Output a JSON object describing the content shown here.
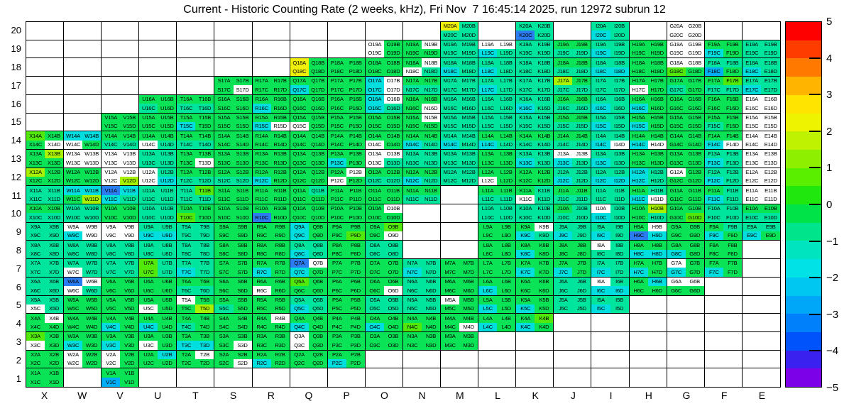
{
  "title": "Current - Historic Counting Rate (2 weeks, kHz), Fri Nov  7 16:45:14 2025, run 12972 subrun 12",
  "chart_data": {
    "type": "heatmap",
    "title": "Current - Historic Counting Rate (2 weeks, kHz), Fri Nov  7 16:45:14 2025, run 12972 subrun 12",
    "xlabel": "",
    "ylabel": "",
    "x_categories": [
      "X",
      "W",
      "V",
      "U",
      "T",
      "S",
      "R",
      "Q",
      "P",
      "O",
      "N",
      "M",
      "L",
      "K",
      "J",
      "I",
      "H",
      "G",
      "F",
      "E"
    ],
    "y_categories": [
      "20",
      "19",
      "18",
      "17",
      "16",
      "15",
      "14",
      "13",
      "12",
      "11",
      "10",
      "9",
      "8",
      "7",
      "6",
      "5",
      "4",
      "3",
      "2",
      "1"
    ],
    "quadrant_labels": [
      "A",
      "B",
      "C",
      "D"
    ],
    "grid_on": true,
    "colorbar": {
      "min": -5,
      "max": 5,
      "tick_labels": [
        "5",
        "4",
        "3",
        "2",
        "1",
        "0",
        "−1",
        "−2",
        "−3",
        "−4",
        "−5"
      ],
      "band_colors_top_to_bottom": [
        "#ff0000",
        "#ff3c00",
        "#ff7800",
        "#ffb400",
        "#ffe400",
        "#eef400",
        "#bef200",
        "#8ef000",
        "#5aee00",
        "#20e80e",
        "#00e348",
        "#00e58c",
        "#00e5c0",
        "#00e2e6",
        "#00c6f2",
        "#00a6f8",
        "#0080fa",
        "#0053fb",
        "#3b21f0",
        "#7c00e8"
      ]
    },
    "palette": {
      "w": {
        "hex": "#ffffff",
        "approx_value": null
      },
      "g": {
        "hex": "#0be356",
        "approx_value": 0.3
      },
      "t": {
        "hex": "#00e59e",
        "approx_value": -0.7
      },
      "c": {
        "hex": "#00dee0",
        "approx_value": -1.7
      },
      "s": {
        "hex": "#00aef8",
        "approx_value": -2.3
      },
      "b": {
        "hex": "#2b7cf0",
        "approx_value": -2.9
      },
      "l": {
        "hex": "#52e90a",
        "approx_value": 1.2
      },
      "y": {
        "hex": "#a8f200",
        "approx_value": 1.8
      },
      "Y": {
        "hex": "#efef0a",
        "approx_value": 2.6
      }
    },
    "cells": {
      "X14": "lggw",
      "X13": "gygg",
      "X12": "yggg",
      "X11": "tttt",
      "X10": "ggtt",
      "X9": "tttt",
      "X8": "tttt",
      "X7": "tttt",
      "X6": "tttt",
      "X5": "ttwt",
      "X4": "gwgg",
      "X3": "lgwg",
      "X2": "gggg",
      "X1": "gggg",
      "W14": "ccwg",
      "W13": "wwww",
      "W12": "gggg",
      "W11": "ccgy",
      "W10": "tttt",
      "W9": "wwcw",
      "W8": "tttt",
      "W7": "ttwt",
      "W6": "bwwt",
      "W5": "gggg",
      "W4": "gggg",
      "W3": "ggcg",
      "W2": "wgwg",
      "V15": "gggg",
      "V14": "ggtt",
      "V13": "wwww",
      "V12": "wwwy",
      "V11": "bcct",
      "V10": "gggg",
      "V9": "wwww",
      "V8": "tttt",
      "V7": "tttt",
      "V6": "gggg",
      "V5": "gggg",
      "V4": "ggcg",
      "V3": "ggcg",
      "V2": "wgwg",
      "V1": "ggsg",
      "U16": "ggtg",
      "U15": "gggg",
      "U14": "ggwt",
      "U13": "tttt",
      "U12": "wtwc",
      "U11": "tttt",
      "U10": "tttt",
      "U9": "ttcc",
      "U8": "tttt",
      "U7": "ltlt",
      "U6": "gggg",
      "U5": "ggwg",
      "U4": "ggcg",
      "U3": "ggwg",
      "U2": "gcgg",
      "T16": "ggtt",
      "T15": "ggcg",
      "T14": "ggtt",
      "T13": "gggw",
      "T12": "ggtt",
      "T11": "tltt",
      "T10": "gglg",
      "T9": "tttt",
      "T8": "tttt",
      "T7": "ttct",
      "T6": "ggtt",
      "T5": "wggy",
      "T4": "ggtg",
      "T3": "ggcc",
      "T2": "gwgg",
      "S17": "gggw",
      "S16": "gggg",
      "S15": "gggg",
      "S14": "gggg",
      "S13": "gggg",
      "S12": "ggtt",
      "S11": "gggg",
      "S10": "gggg",
      "S9": "gggg",
      "S8": "gggg",
      "S7": "gggg",
      "S6": "gggg",
      "S5": "ggtg",
      "S4": "gggg",
      "S3": "gggw",
      "S2": "gggw",
      "R17": "gggg",
      "R16": "ggcg",
      "R15": "ggcw",
      "R14": "gggg",
      "R13": "gggg",
      "R12": "ggcg",
      "R11": "gggg",
      "R10": "ggbg",
      "R9": "gggg",
      "R8": "gggg",
      "R7": "ggcg",
      "R6": "ggwg",
      "R5": "gggg",
      "R4": "gwgg",
      "R3": "gggg",
      "R2": "ggcg",
      "Q18": "YgYg",
      "Q17": "ggcg",
      "Q16": "gggg",
      "Q15": "ggwg",
      "Q14": "gggg",
      "Q13": "gggg",
      "Q12": "gggg",
      "Q11": "gtgg",
      "Q10": "gggg",
      "Q9": "cgcg",
      "Q8": "ttct",
      "Q7": "bwcg",
      "Q6": "lggg",
      "Q5": "ttct",
      "Q4": "ggcg",
      "Q3": "wgwg",
      "Q2": "gggg",
      "P18": "gggg",
      "P17": "gggg",
      "P16": "gggg",
      "P15": "gggg",
      "P14": "gggg",
      "P13": "ggcg",
      "P12": "gwwg",
      "P11": "gggg",
      "P10": "gggg",
      "P9": "gggl",
      "P8": "gggg",
      "P7": "gggg",
      "P6": "gggg",
      "P5": "gggg",
      "P4": "gggg",
      "P3": "gggg",
      "P2": "ggcg",
      "O19": "wgwg",
      "O18": "gggg",
      "O17": "cwcw",
      "O16": "cwct",
      "O15": "gggg",
      "O14": "ggwg",
      "O13": "wwwt",
      "O12": "ggtt",
      "O11": "gggg",
      "O10": "gwgg",
      "O9": "glgw",
      "O8": "tttt",
      "O7": "gggg",
      "O6": "gggw",
      "O5": "tttt",
      "O4": "ggcg",
      "O3": "gggg",
      "N19": "gwgg",
      "N18": "gwwt",
      "N17": "ggtt",
      "N16": "gggw",
      "N15": "gwgg",
      "N14": "ggct",
      "N13": "tttt",
      "N12": "ggct",
      "N11": "ggtt",
      "N7": "ttct",
      "N6": "tttt",
      "N5": "tttt",
      "N4": "gglg",
      "N3": "gggg",
      "M20": "Yttt",
      "M19": "tttt",
      "M18": "ttct",
      "M17": "tttt",
      "M16": "tttt",
      "M15": "tttt",
      "M14": "ttct",
      "M13": "tttt",
      "M12": "tttt",
      "M7": "gggg",
      "M6": "gggg",
      "M5": "wggg",
      "M4": "gggw",
      "M3": "gggg",
      "L19": "wwct",
      "L18": "ttct",
      "L17": "ttct",
      "L16": "tttt",
      "L15": "tttt",
      "L14": "ggct",
      "L13": "gggg",
      "L12": "ggwg",
      "L11": "ggtt",
      "L10": "tttt",
      "L9": "gggg",
      "L8": "gggg",
      "L7": "gggg",
      "L6": "ggcg",
      "L5": "ggcg",
      "L4": "ggcg",
      "K20": "ttbt",
      "K19": "tttt",
      "K18": "tttt",
      "K17": "tttt",
      "K16": "ttct",
      "K15": "tttt",
      "K14": "ggtt",
      "K13": "ttct",
      "K12": "gggg",
      "K11": "gtwt",
      "K10": "tttt",
      "K9": "gwct",
      "K8": "ggcg",
      "K7": "ggcg",
      "K6": "gggg",
      "K5": "ggcg",
      "K4": "glcg",
      "J19": "ggtt",
      "J18": "ggtt",
      "J17": "ygtt",
      "J16": "ggtt",
      "J15": "ggtt",
      "J14": "ggtt",
      "J13": "wwct",
      "J12": "ttct",
      "J11": "ggtt",
      "J10": "gttt",
      "J9": "ttct",
      "J8": "gggg",
      "J7": "ggcg",
      "J6": "tttt",
      "J5": "tttt",
      "I20": "ttct",
      "I19": "ttct",
      "I18": "ttcc",
      "I17": "tttt",
      "I16": "ttct",
      "I15": "ttct",
      "I14": "ttcw",
      "I13": "ttct",
      "I12": "ttcc",
      "I11": "tttt",
      "I10": "wtct",
      "I9": "ttct",
      "I8": "wttt",
      "I7": "ttct",
      "I6": "wtcc",
      "I5": "ttct",
      "H19": "gggg",
      "H18": "gggg",
      "H17": "ggwg",
      "H16": "ggcg",
      "H15": "ggcg",
      "H14": "ggcw",
      "H13": "gggg",
      "H12": "ctct",
      "H11": "gtcw",
      "H10": "gygt",
      "H9": "gwbc",
      "H8": "ggcc",
      "H7": "ggcg",
      "H6": "gcgg",
      "G20": "wwww",
      "G19": "wwww",
      "G18": "wwlg",
      "G17": "ggtg",
      "G16": "gggg",
      "G15": "gggg",
      "G14": "gggg",
      "G13": "gggg",
      "G12": "wggg",
      "G11": "gggg",
      "G10": "gggl",
      "G9": "gggg",
      "G8": "ggcg",
      "G7": "wgcg",
      "G6": "wwgg",
      "F19": "ggcg",
      "F18": "ttsg",
      "F17": "gltt",
      "F16": "gggg",
      "F15": "ggtg",
      "F14": "ggcw",
      "F13": "ttct",
      "F12": "ttct",
      "F11": "gtct",
      "F10": "tttt",
      "F9": "gtcg",
      "F8": "gggg",
      "F7": "ggcg",
      "E19": "tttt",
      "E18": "ttct",
      "E17": "ttct",
      "E16": "wwww",
      "E15": "wwww",
      "E14": "wwww",
      "E13": "wwww",
      "E12": "wwww",
      "E11": "wwww",
      "E10": "ggtt",
      "E9": "ttcg"
    }
  }
}
